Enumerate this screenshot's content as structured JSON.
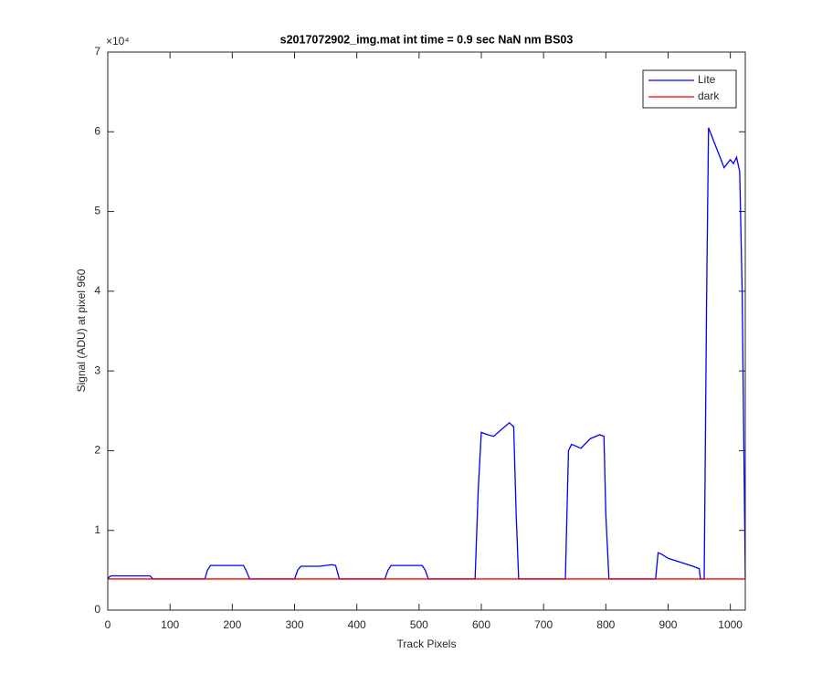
{
  "chart_data": {
    "type": "line",
    "title": "s2017072902_img.mat int time = 0.9 sec  NaN nm BS03",
    "xlabel": "Track Pixels",
    "ylabel": "Signal (ADU) at pixel 960",
    "y_multiplier": "×10⁴",
    "xlim": [
      0,
      1024
    ],
    "ylim": [
      0,
      70000
    ],
    "xticks": [
      0,
      100,
      200,
      300,
      400,
      500,
      600,
      700,
      800,
      900,
      1000
    ],
    "yticks": [
      0,
      {
        "value": 10000,
        "label": "1"
      },
      {
        "value": 20000,
        "label": "2"
      },
      {
        "value": 30000,
        "label": "3"
      },
      {
        "value": 40000,
        "label": "4"
      },
      {
        "value": 50000,
        "label": "5"
      },
      {
        "value": 60000,
        "label": "6"
      },
      {
        "value": 70000,
        "label": "7"
      }
    ],
    "grid": false,
    "legend_position": "upper-right",
    "series": [
      {
        "name": "Lite",
        "color": "#0000ff",
        "x": [
          0,
          3,
          6,
          68,
          72,
          75,
          156,
          160,
          165,
          218,
          222,
          228,
          300,
          305,
          310,
          340,
          360,
          366,
          372,
          445,
          450,
          455,
          505,
          510,
          515,
          590,
          595,
          600,
          610,
          620,
          630,
          645,
          652,
          656,
          660,
          735,
          740,
          745,
          760,
          775,
          790,
          797,
          800,
          805,
          880,
          884,
          890,
          900,
          920,
          940,
          950,
          952,
          958,
          962,
          965,
          975,
          980,
          990,
          1000,
          1005,
          1010,
          1015,
          1019,
          1024
        ],
        "values": [
          3900,
          4200,
          4300,
          4300,
          3950,
          3900,
          3900,
          5000,
          5600,
          5600,
          5000,
          3900,
          3900,
          5000,
          5500,
          5500,
          5700,
          5600,
          3900,
          3900,
          5000,
          5600,
          5600,
          5000,
          3900,
          3900,
          15000,
          22300,
          22000,
          21800,
          22500,
          23500,
          23000,
          12000,
          3900,
          3900,
          20000,
          20800,
          20300,
          21500,
          22000,
          21800,
          12000,
          3900,
          3900,
          7200,
          7000,
          6500,
          6000,
          5500,
          5200,
          3900,
          3900,
          40000,
          60500,
          58500,
          57500,
          55500,
          56500,
          56000,
          56800,
          55000,
          40000,
          4000
        ]
      },
      {
        "name": "dark",
        "color": "#ff0000",
        "x": [
          0,
          1024
        ],
        "values": [
          3900,
          3900
        ]
      }
    ]
  }
}
